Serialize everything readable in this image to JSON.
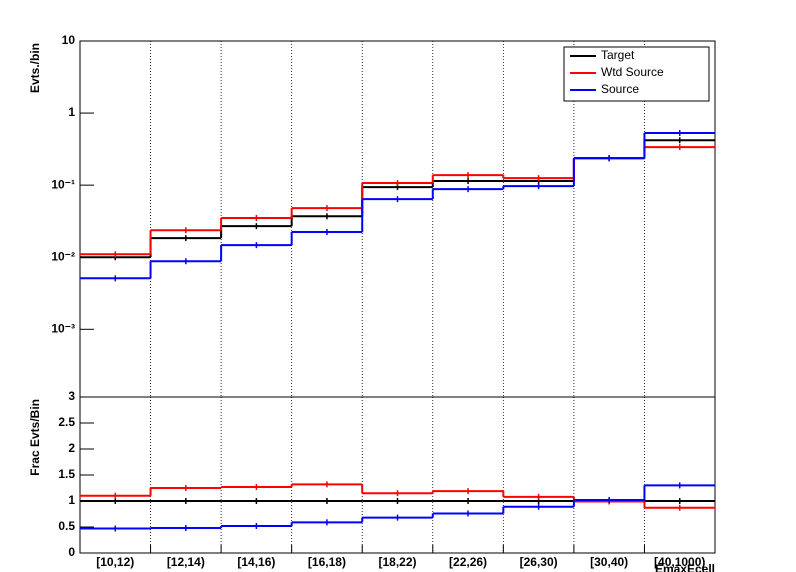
{
  "chart_data": [
    {
      "type": "step",
      "y_label": "Evts./bin",
      "log_y": true,
      "grid": "x",
      "legend_position": "top-right",
      "ylim": [
        0.000115,
        10
      ],
      "yticks": [
        {
          "value": 0.001,
          "label": "10⁻³"
        },
        {
          "value": 0.01,
          "label": "10⁻²"
        },
        {
          "value": 0.1,
          "label": "10⁻¹"
        },
        1,
        10
      ],
      "series": [
        {
          "name": "Target",
          "color": "#000000",
          "values": [
            0.01,
            0.0184,
            0.027,
            0.037,
            0.094,
            0.114,
            0.114,
            0.237,
            0.42
          ]
        },
        {
          "name": "Wtd Source",
          "color": "#ff0000",
          "values": [
            0.011,
            0.0237,
            0.035,
            0.048,
            0.107,
            0.138,
            0.125,
            0.235,
            0.337
          ]
        },
        {
          "name": "Source",
          "color": "#0000ff",
          "values": [
            0.0051,
            0.0088,
            0.0147,
            0.0224,
            0.064,
            0.088,
            0.097,
            0.237,
            0.53
          ]
        }
      ]
    },
    {
      "type": "step",
      "y_label": "Frac Evts/Bin",
      "x_label": "EmaxEcell",
      "grid": "x",
      "categories": [
        "[10,12)",
        "[12,14)",
        "[14,16)",
        "[16,18)",
        "[18,22)",
        "[22,26)",
        "[26,30)",
        "[30,40)",
        "[40,1000)"
      ],
      "ylim": [
        0,
        3
      ],
      "yticks": [
        0,
        0.5,
        1,
        1.5,
        2,
        2.5,
        3
      ],
      "series": [
        {
          "color": "#000000",
          "values": [
            1,
            1,
            1,
            1,
            1,
            1,
            1,
            1,
            1
          ]
        },
        {
          "color": "#ff0000",
          "values": [
            1.1,
            1.25,
            1.27,
            1.32,
            1.15,
            1.19,
            1.08,
            0.99,
            0.87
          ]
        },
        {
          "color": "#0000ff",
          "values": [
            0.47,
            0.48,
            0.52,
            0.59,
            0.68,
            0.76,
            0.89,
            1.02,
            1.3
          ]
        }
      ]
    }
  ]
}
